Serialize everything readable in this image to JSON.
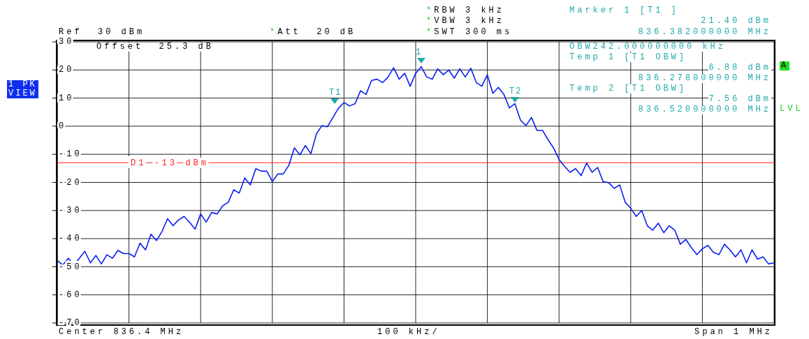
{
  "chart_data": {
    "type": "line",
    "categories": [
      null,
      null,
      null,
      null,
      null,
      null,
      null,
      null,
      null,
      null,
      null,
      null,
      null,
      null,
      null,
      null,
      null,
      null,
      null,
      null,
      null,
      null,
      null,
      null,
      null,
      null,
      null,
      null,
      null,
      null,
      null,
      null,
      null,
      null,
      null,
      null,
      null,
      null,
      null,
      null,
      null,
      null,
      null,
      null,
      null,
      null,
      null,
      null,
      null,
      null,
      null,
      null,
      null,
      null,
      null,
      null,
      null,
      null,
      null,
      null,
      null,
      null,
      null,
      null,
      null,
      null,
      null,
      null,
      null,
      null,
      null,
      null,
      null,
      null,
      null,
      null,
      null,
      null,
      null,
      null,
      null,
      null,
      null,
      null,
      null,
      null,
      null,
      null,
      null,
      null,
      null,
      null,
      null,
      null,
      null,
      null,
      null,
      null,
      null,
      null,
      null,
      null,
      null,
      null,
      null,
      null,
      null,
      null,
      null,
      null,
      null,
      null,
      null,
      null,
      null,
      null,
      null,
      null,
      null,
      null,
      null,
      null,
      null,
      null,
      null,
      null,
      null,
      null,
      null,
      null,
      null
    ],
    "series": [
      {
        "color": "#0a1ff0",
        "values": [
          -47.8,
          -49.4,
          -47,
          -49.4,
          -47,
          -44.5,
          -48.6,
          -46,
          -49,
          -45.7,
          -47,
          -44.2,
          -45.3,
          -45.3,
          -46.5,
          -41.6,
          -44,
          -38.4,
          -40.7,
          -37.4,
          -32.9,
          -35.4,
          -33.3,
          -32.1,
          -34.2,
          -36.6,
          -31.2,
          -34.1,
          -30.7,
          -31.2,
          -28.3,
          -27.1,
          -22.6,
          -23.8,
          -18.4,
          -20.9,
          -15.1,
          -16,
          -16,
          -19.7,
          -17,
          -17,
          -13.9,
          -7.7,
          -10.2,
          -6.9,
          -9.8,
          -2.7,
          0.2,
          -0.2,
          3.1,
          6.4,
          8.4,
          7.2,
          8,
          12.6,
          11.3,
          16.3,
          16.7,
          15.5,
          17.5,
          20.8,
          16.7,
          18.8,
          14.2,
          18.8,
          21.2,
          17.5,
          16.7,
          20.4,
          18.3,
          20,
          17.1,
          20.4,
          17.5,
          20.6,
          15.5,
          14.2,
          18.3,
          11.7,
          13.8,
          11.3,
          6.5,
          8,
          2.2,
          0.2,
          3.1,
          -1.5,
          -1.5,
          -4.8,
          -7.7,
          -11.8,
          -14.3,
          -16.4,
          -15.1,
          -17.6,
          -13.1,
          -16.4,
          -14.7,
          -19.7,
          -20.1,
          -22.1,
          -20.9,
          -27.1,
          -29.2,
          -32.1,
          -30,
          -35.4,
          -37,
          -34.5,
          -37.9,
          -35.4,
          -37,
          -42,
          -40.3,
          -43.2,
          -45.7,
          -43.6,
          -42.4,
          -44.9,
          -45.7,
          -42,
          -44,
          -46.5,
          -44,
          -48.6,
          -44,
          -47.3,
          -46.5,
          -49,
          -48.6
        ]
      }
    ],
    "ylim": [
      -70,
      30
    ],
    "yticks": [
      30,
      20,
      10,
      0,
      -10,
      -20,
      -30,
      -40,
      -50,
      -60,
      -70
    ],
    "grid": true,
    "ref_lines": [
      {
        "axis": "y",
        "value": -13,
        "label": "D1 -13 dBm",
        "color": "#ff2020"
      }
    ],
    "annotations": [
      "Ref  30 dBm",
      "*Att  20 dB",
      "*RBW 3 kHz",
      "*VBW 3 kHz",
      "*SWT 300 ms",
      "Marker 1 [T1 ]",
      "21.40 dBm",
      "836.382000000 MHz",
      "Offset  25.3 dB",
      "OBW242.000000000 kHz",
      "Temp 1 [T1 OBW]",
      "6.88 dBm",
      "836.278000000 MHz",
      "Temp 2 [T1 OBW]",
      "7.56 dBm",
      "836.520000000 MHz",
      "1 PK",
      "VIEW",
      "A",
      "LVL",
      "Center 836.4 MHz",
      "100 kHz/",
      "Span 1 MHz",
      {
        "text": "1",
        "y": 21.4
      },
      {
        "text": "T1",
        "y": 6.88
      },
      {
        "text": "T2",
        "y": 7.56
      }
    ]
  }
}
